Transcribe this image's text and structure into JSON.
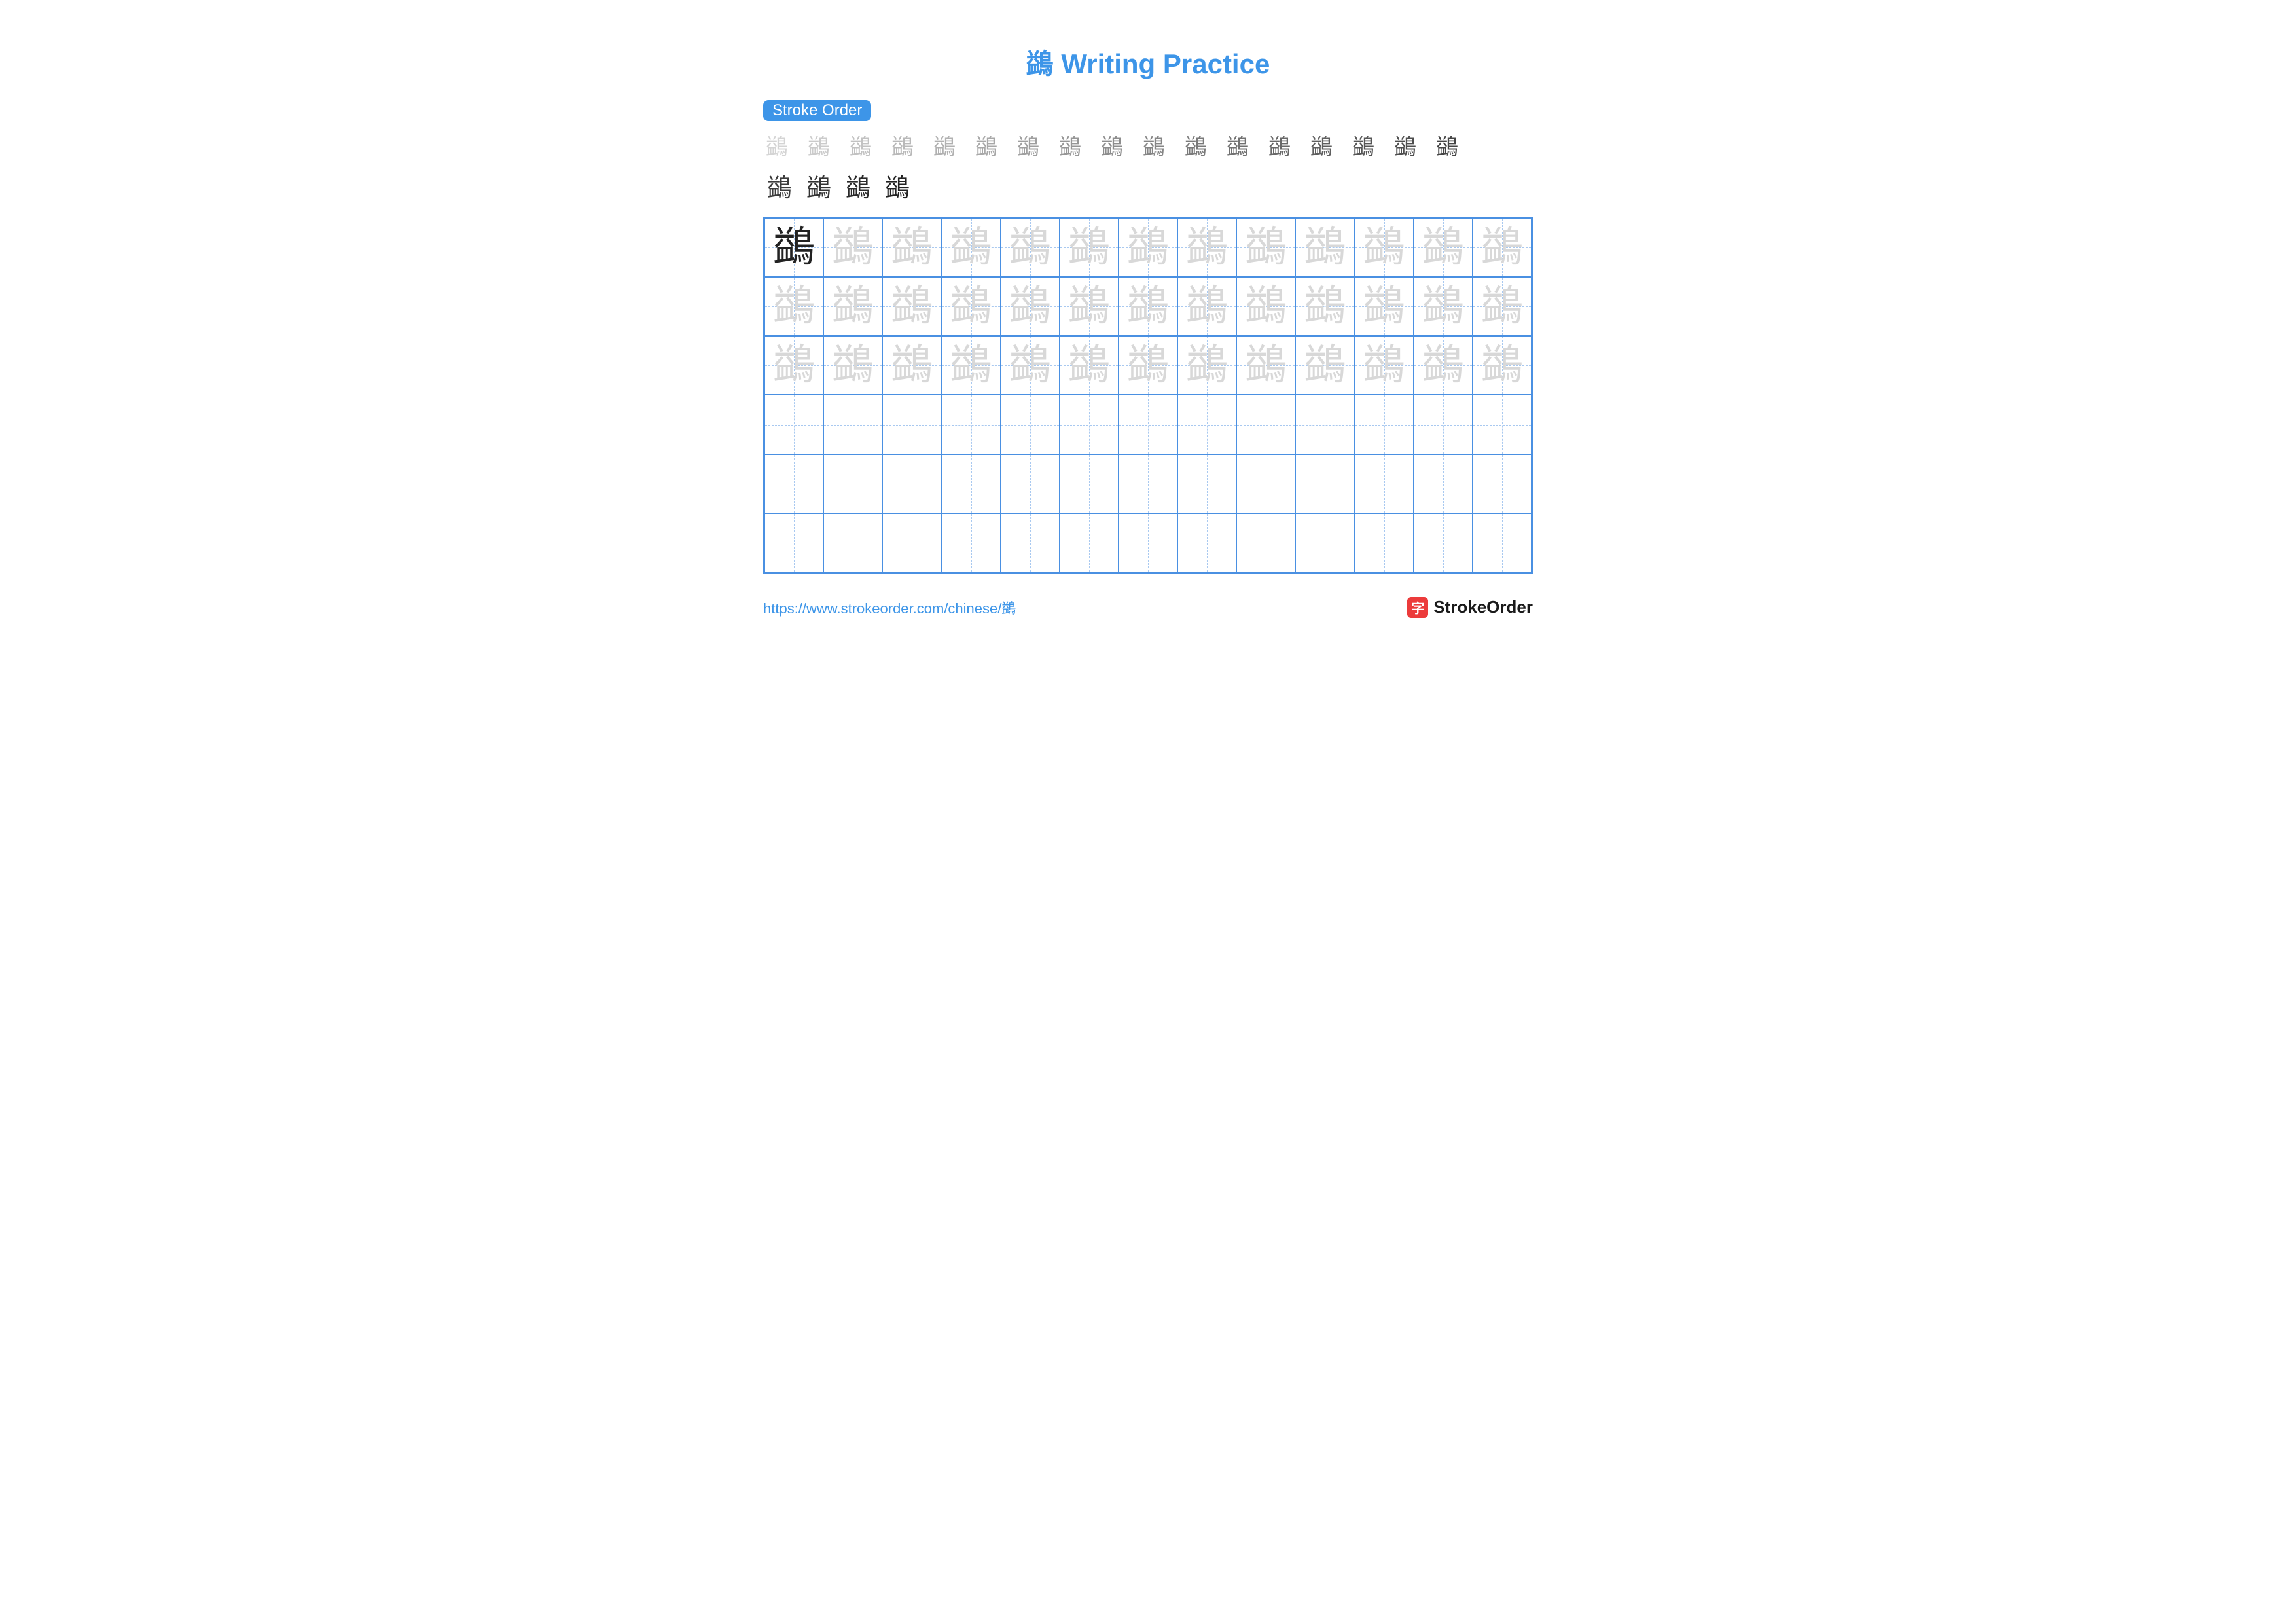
{
  "colors": {
    "accent": "#3d95e8",
    "grid_border": "#4a90e2",
    "grid_dash": "#a9c9f0",
    "text_dark": "#222222",
    "trace_gray": "#d8d8d8",
    "stroke_highlight": "#d9262a",
    "logo_bg": "#ec3b3b",
    "logo_text_dark": "#1a1a1a"
  },
  "title": "鷁 Writing Practice",
  "stroke_label": "Stroke Order",
  "character": "鷁",
  "stroke_count": 21,
  "url": "https://www.strokeorder.com/chinese/鷁",
  "logo": {
    "mark": "字",
    "text": "StrokeOrder"
  },
  "layout": {
    "cols": 13,
    "rows": 6,
    "trace_rows": 3,
    "model_cell": {
      "row": 0,
      "col": 0
    },
    "title_fontsize": 42,
    "cell_char_fontsize": 64,
    "stroke_fontsize_top": 34,
    "stroke_fontsize_overflow": 38,
    "badge_fontsize": 24,
    "url_fontsize": 22,
    "logo_fontsize": 26,
    "steps_first_row": 17,
    "steps_second_row": 4
  }
}
